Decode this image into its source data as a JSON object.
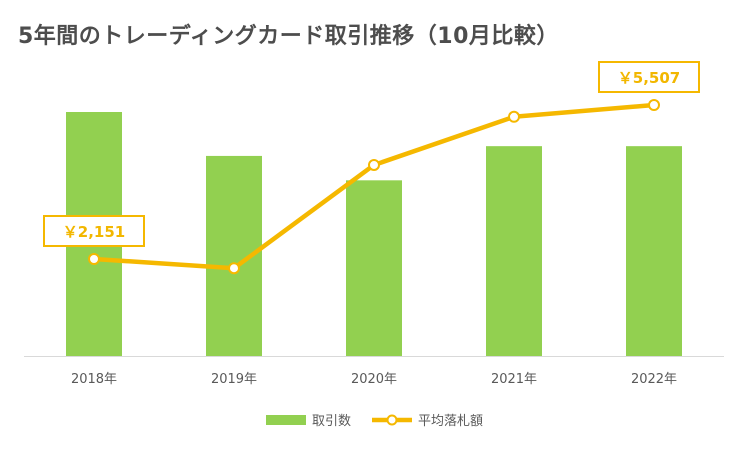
{
  "chart_data": {
    "type": "bar",
    "title": "5年間のトレーディングカード取引推移（10月比較）",
    "categories": [
      "2018年",
      "2019年",
      "2020年",
      "2021年",
      "2022年"
    ],
    "series": [
      {
        "name": "取引数",
        "type": "bar",
        "values": [
          100,
          82,
          72,
          86,
          86
        ],
        "color": "#92d050"
      },
      {
        "name": "平均落札額",
        "type": "line",
        "values": [
          2151,
          1950,
          4200,
          5250,
          5507
        ],
        "color": "#f5b800"
      }
    ],
    "callouts": [
      {
        "series": 1,
        "index": 0,
        "label": "￥2,151"
      },
      {
        "series": 1,
        "index": 4,
        "label": "￥5,507"
      }
    ],
    "grid": false,
    "legend_position": "bottom-center"
  }
}
